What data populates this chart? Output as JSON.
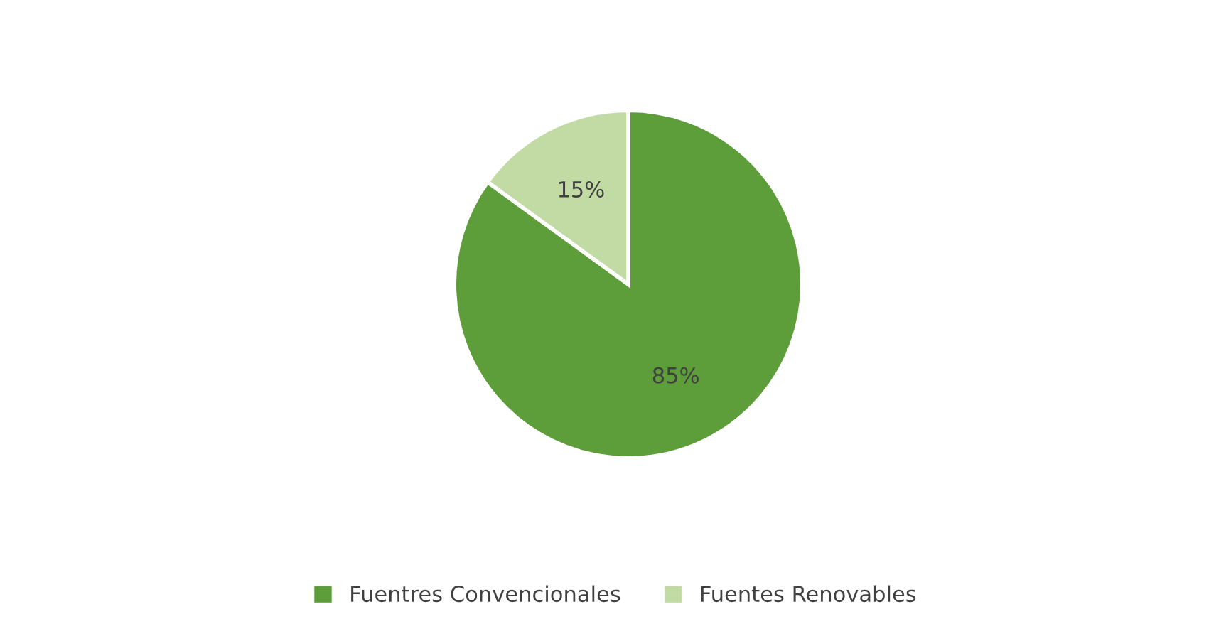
{
  "chart_data": {
    "type": "pie",
    "categories": [
      "Fuentres Convencionales",
      "Fuentes Renovables"
    ],
    "values": [
      85,
      15
    ],
    "colors": [
      "#5e9e3a",
      "#c2dba5"
    ],
    "value_labels": [
      "85%",
      "15%"
    ],
    "legend": "bottom"
  }
}
